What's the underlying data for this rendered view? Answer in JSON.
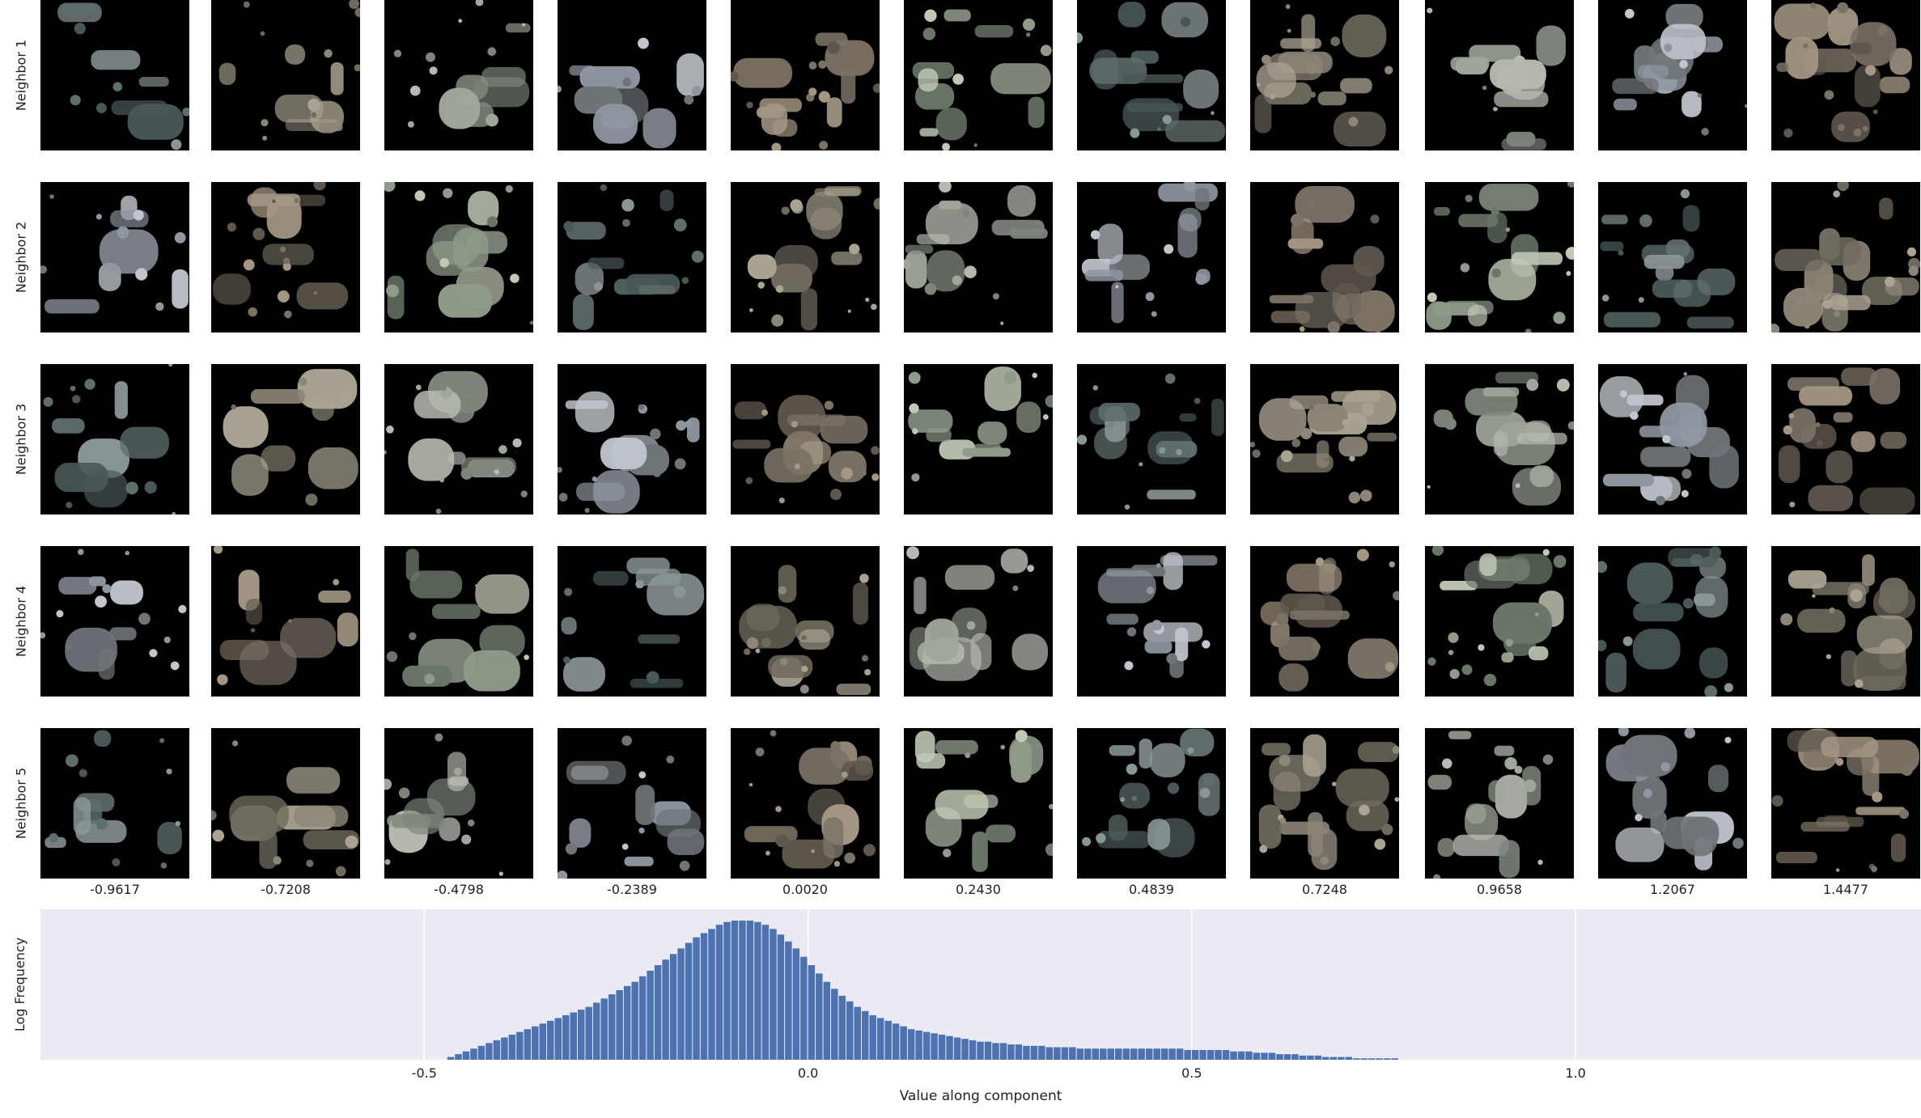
{
  "rows": [
    "Neighbor 1",
    "Neighbor 2",
    "Neighbor 3",
    "Neighbor 4",
    "Neighbor 5"
  ],
  "columns": [
    "-0.9617",
    "-0.7208",
    "-0.4798",
    "-0.2389",
    "0.0020",
    "0.2430",
    "0.4839",
    "0.7248",
    "0.9658",
    "1.2067",
    "1.4477"
  ],
  "colors": {
    "background": "#ffffff",
    "plot_background": "#eaeaf2",
    "bar": "#4c72b0",
    "grid": "#ffffff"
  },
  "chart_data": {
    "type": "bar",
    "xlabel": "Value along component",
    "ylabel": "Log Frequency",
    "xlim": [
      -1.0,
      1.45
    ],
    "xticks": [
      "-0.5",
      "0.0",
      "0.5",
      "1.0"
    ],
    "xtick_values": [
      -0.5,
      0.0,
      0.5,
      1.0
    ],
    "grid": true,
    "bin_start": -0.47,
    "bin_width": 0.01,
    "values": [
      0.02,
      0.04,
      0.06,
      0.08,
      0.1,
      0.12,
      0.14,
      0.16,
      0.18,
      0.2,
      0.22,
      0.24,
      0.26,
      0.28,
      0.3,
      0.32,
      0.34,
      0.36,
      0.38,
      0.41,
      0.44,
      0.47,
      0.5,
      0.53,
      0.56,
      0.6,
      0.64,
      0.68,
      0.72,
      0.76,
      0.8,
      0.84,
      0.88,
      0.91,
      0.94,
      0.97,
      0.99,
      1.0,
      1.0,
      1.0,
      0.99,
      0.97,
      0.94,
      0.9,
      0.85,
      0.8,
      0.74,
      0.68,
      0.62,
      0.56,
      0.51,
      0.46,
      0.42,
      0.38,
      0.35,
      0.32,
      0.3,
      0.28,
      0.26,
      0.24,
      0.22,
      0.21,
      0.2,
      0.19,
      0.18,
      0.17,
      0.16,
      0.15,
      0.14,
      0.13,
      0.13,
      0.12,
      0.12,
      0.11,
      0.11,
      0.1,
      0.1,
      0.1,
      0.09,
      0.09,
      0.09,
      0.09,
      0.08,
      0.08,
      0.08,
      0.08,
      0.08,
      0.08,
      0.08,
      0.08,
      0.08,
      0.08,
      0.08,
      0.08,
      0.08,
      0.08,
      0.07,
      0.07,
      0.07,
      0.07,
      0.07,
      0.07,
      0.06,
      0.06,
      0.06,
      0.05,
      0.05,
      0.05,
      0.04,
      0.04,
      0.04,
      0.03,
      0.03,
      0.03,
      0.02,
      0.02,
      0.02,
      0.02,
      0.01,
      0.01,
      0.01,
      0.01,
      0.01,
      0.01
    ]
  }
}
